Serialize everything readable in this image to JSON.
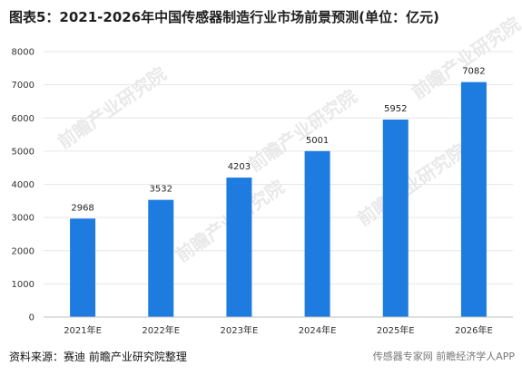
{
  "title": "图表5：2021-2026年中国传感器制造行业市场前景预测(单位：亿元)",
  "source": "资料来源：赛迪 前瞻产业研究院整理",
  "watermark_text": "前瞻产业研究院",
  "credit": "传感器专家网 前瞻经济学人APP",
  "colors": {
    "bar": "#1e7be0",
    "grid": "#e6e6e6",
    "axis": "#bfbfbf"
  },
  "chart_data": {
    "type": "bar",
    "title": "图表5：2021-2026年中国传感器制造行业市场前景预测(单位：亿元)",
    "xlabel": "",
    "ylabel": "",
    "categories": [
      "2021年E",
      "2022年E",
      "2023年E",
      "2024年E",
      "2025年E",
      "2026年E"
    ],
    "values": [
      2968,
      3532,
      4203,
      5001,
      5952,
      7082
    ],
    "yticks": [
      0,
      1000,
      2000,
      3000,
      4000,
      5000,
      6000,
      7000,
      8000
    ],
    "ylim": [
      0,
      8000
    ],
    "grid": true,
    "legend": "none"
  }
}
